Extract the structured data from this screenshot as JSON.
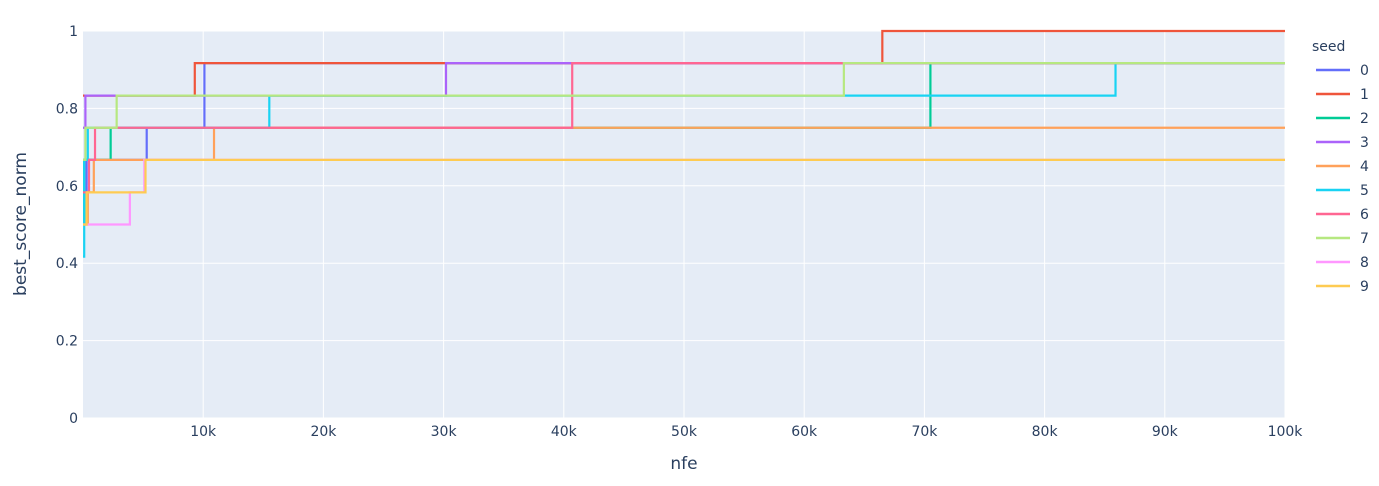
{
  "chart_data": {
    "type": "line",
    "line_shape": "step",
    "xlabel": "nfe",
    "ylabel": "best_score_norm",
    "xlim": [
      0,
      100000
    ],
    "ylim": [
      0,
      1
    ],
    "x_tick_values": [
      10000,
      20000,
      30000,
      40000,
      50000,
      60000,
      70000,
      80000,
      90000,
      100000
    ],
    "x_tick_labels": [
      "10k",
      "20k",
      "30k",
      "40k",
      "50k",
      "60k",
      "70k",
      "80k",
      "90k",
      "100k"
    ],
    "y_tick_values": [
      0,
      0.2,
      0.4,
      0.6,
      0.8,
      1
    ],
    "y_tick_labels": [
      "0",
      "0.2",
      "0.4",
      "0.6",
      "0.8",
      "1"
    ],
    "grid": true,
    "background_color": "#e5ecf6",
    "legend_title": "seed",
    "legend_position": "right",
    "series": [
      {
        "name": "0",
        "color": "#636efa",
        "x": [
          0,
          300,
          5300,
          10100,
          100000
        ],
        "y": [
          0.583,
          0.667,
          0.75,
          0.917,
          0.917
        ]
      },
      {
        "name": "1",
        "color": "#ef553b",
        "x": [
          0,
          9300,
          66500,
          100000
        ],
        "y": [
          0.833,
          0.917,
          1.0,
          1.0
        ]
      },
      {
        "name": "2",
        "color": "#00cc96",
        "x": [
          0,
          100,
          2300,
          70500,
          100000
        ],
        "y": [
          0.5,
          0.667,
          0.75,
          0.917,
          0.917
        ]
      },
      {
        "name": "3",
        "color": "#ab63fa",
        "x": [
          0,
          200,
          30200,
          100000
        ],
        "y": [
          0.75,
          0.833,
          0.917,
          0.917
        ]
      },
      {
        "name": "4",
        "color": "#ffa15a",
        "x": [
          0,
          400,
          900,
          5000,
          10900,
          100000
        ],
        "y": [
          0.5,
          0.583,
          0.667,
          0.667,
          0.75,
          0.75
        ]
      },
      {
        "name": "5",
        "color": "#19d3f3",
        "x": [
          0,
          100,
          400,
          15500,
          85900,
          100000
        ],
        "y": [
          0.417,
          0.667,
          0.75,
          0.833,
          0.917,
          0.917
        ]
      },
      {
        "name": "6",
        "color": "#ff6692",
        "x": [
          0,
          500,
          1000,
          40700,
          100000
        ],
        "y": [
          0.583,
          0.667,
          0.75,
          0.917,
          0.917
        ]
      },
      {
        "name": "7",
        "color": "#b6e880",
        "x": [
          0,
          200,
          2800,
          63300,
          100000
        ],
        "y": [
          0.667,
          0.75,
          0.833,
          0.917,
          0.917
        ]
      },
      {
        "name": "8",
        "color": "#ff97ff",
        "x": [
          0,
          400,
          3900,
          5100,
          100000
        ],
        "y": [
          0.5,
          0.5,
          0.583,
          0.667,
          0.667
        ]
      },
      {
        "name": "9",
        "color": "#fecb52",
        "x": [
          0,
          300,
          5200,
          100000
        ],
        "y": [
          0.5,
          0.583,
          0.667,
          0.667
        ]
      }
    ]
  }
}
